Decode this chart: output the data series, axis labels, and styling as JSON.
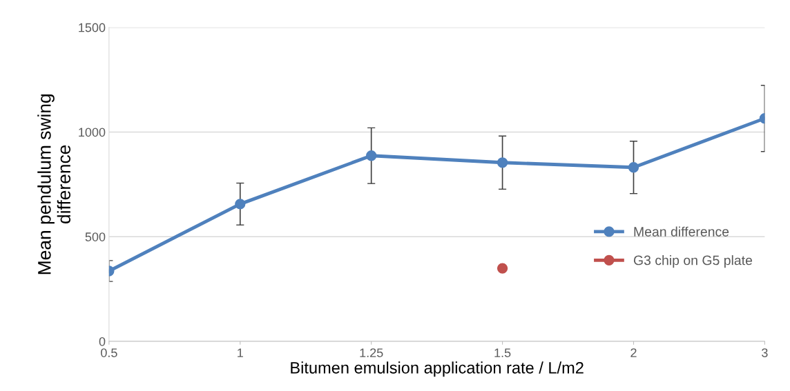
{
  "chart_data": {
    "type": "line",
    "xlabel": "Bitumen emulsion application rate / L/m2",
    "ylabel": "Mean pendulum swing\ndifference",
    "categories": [
      "0.5",
      "1",
      "1.25",
      "1.5",
      "2",
      "3"
    ],
    "series": [
      {
        "name": "Mean difference",
        "color": "#4f81bd",
        "values": [
          336,
          656,
          887,
          854,
          831,
          1065
        ],
        "errors": [
          50,
          100,
          133,
          127,
          125,
          158
        ]
      },
      {
        "name": "G3 chip on G5 plate",
        "type": "scatter",
        "color": "#c0504d",
        "x": [
          "1.5"
        ],
        "values": [
          349
        ]
      }
    ],
    "ylim": [
      0,
      1500
    ],
    "yticks": [
      0,
      500,
      1000,
      1500
    ],
    "grid": "y",
    "legend": "right",
    "marker": "circle"
  }
}
